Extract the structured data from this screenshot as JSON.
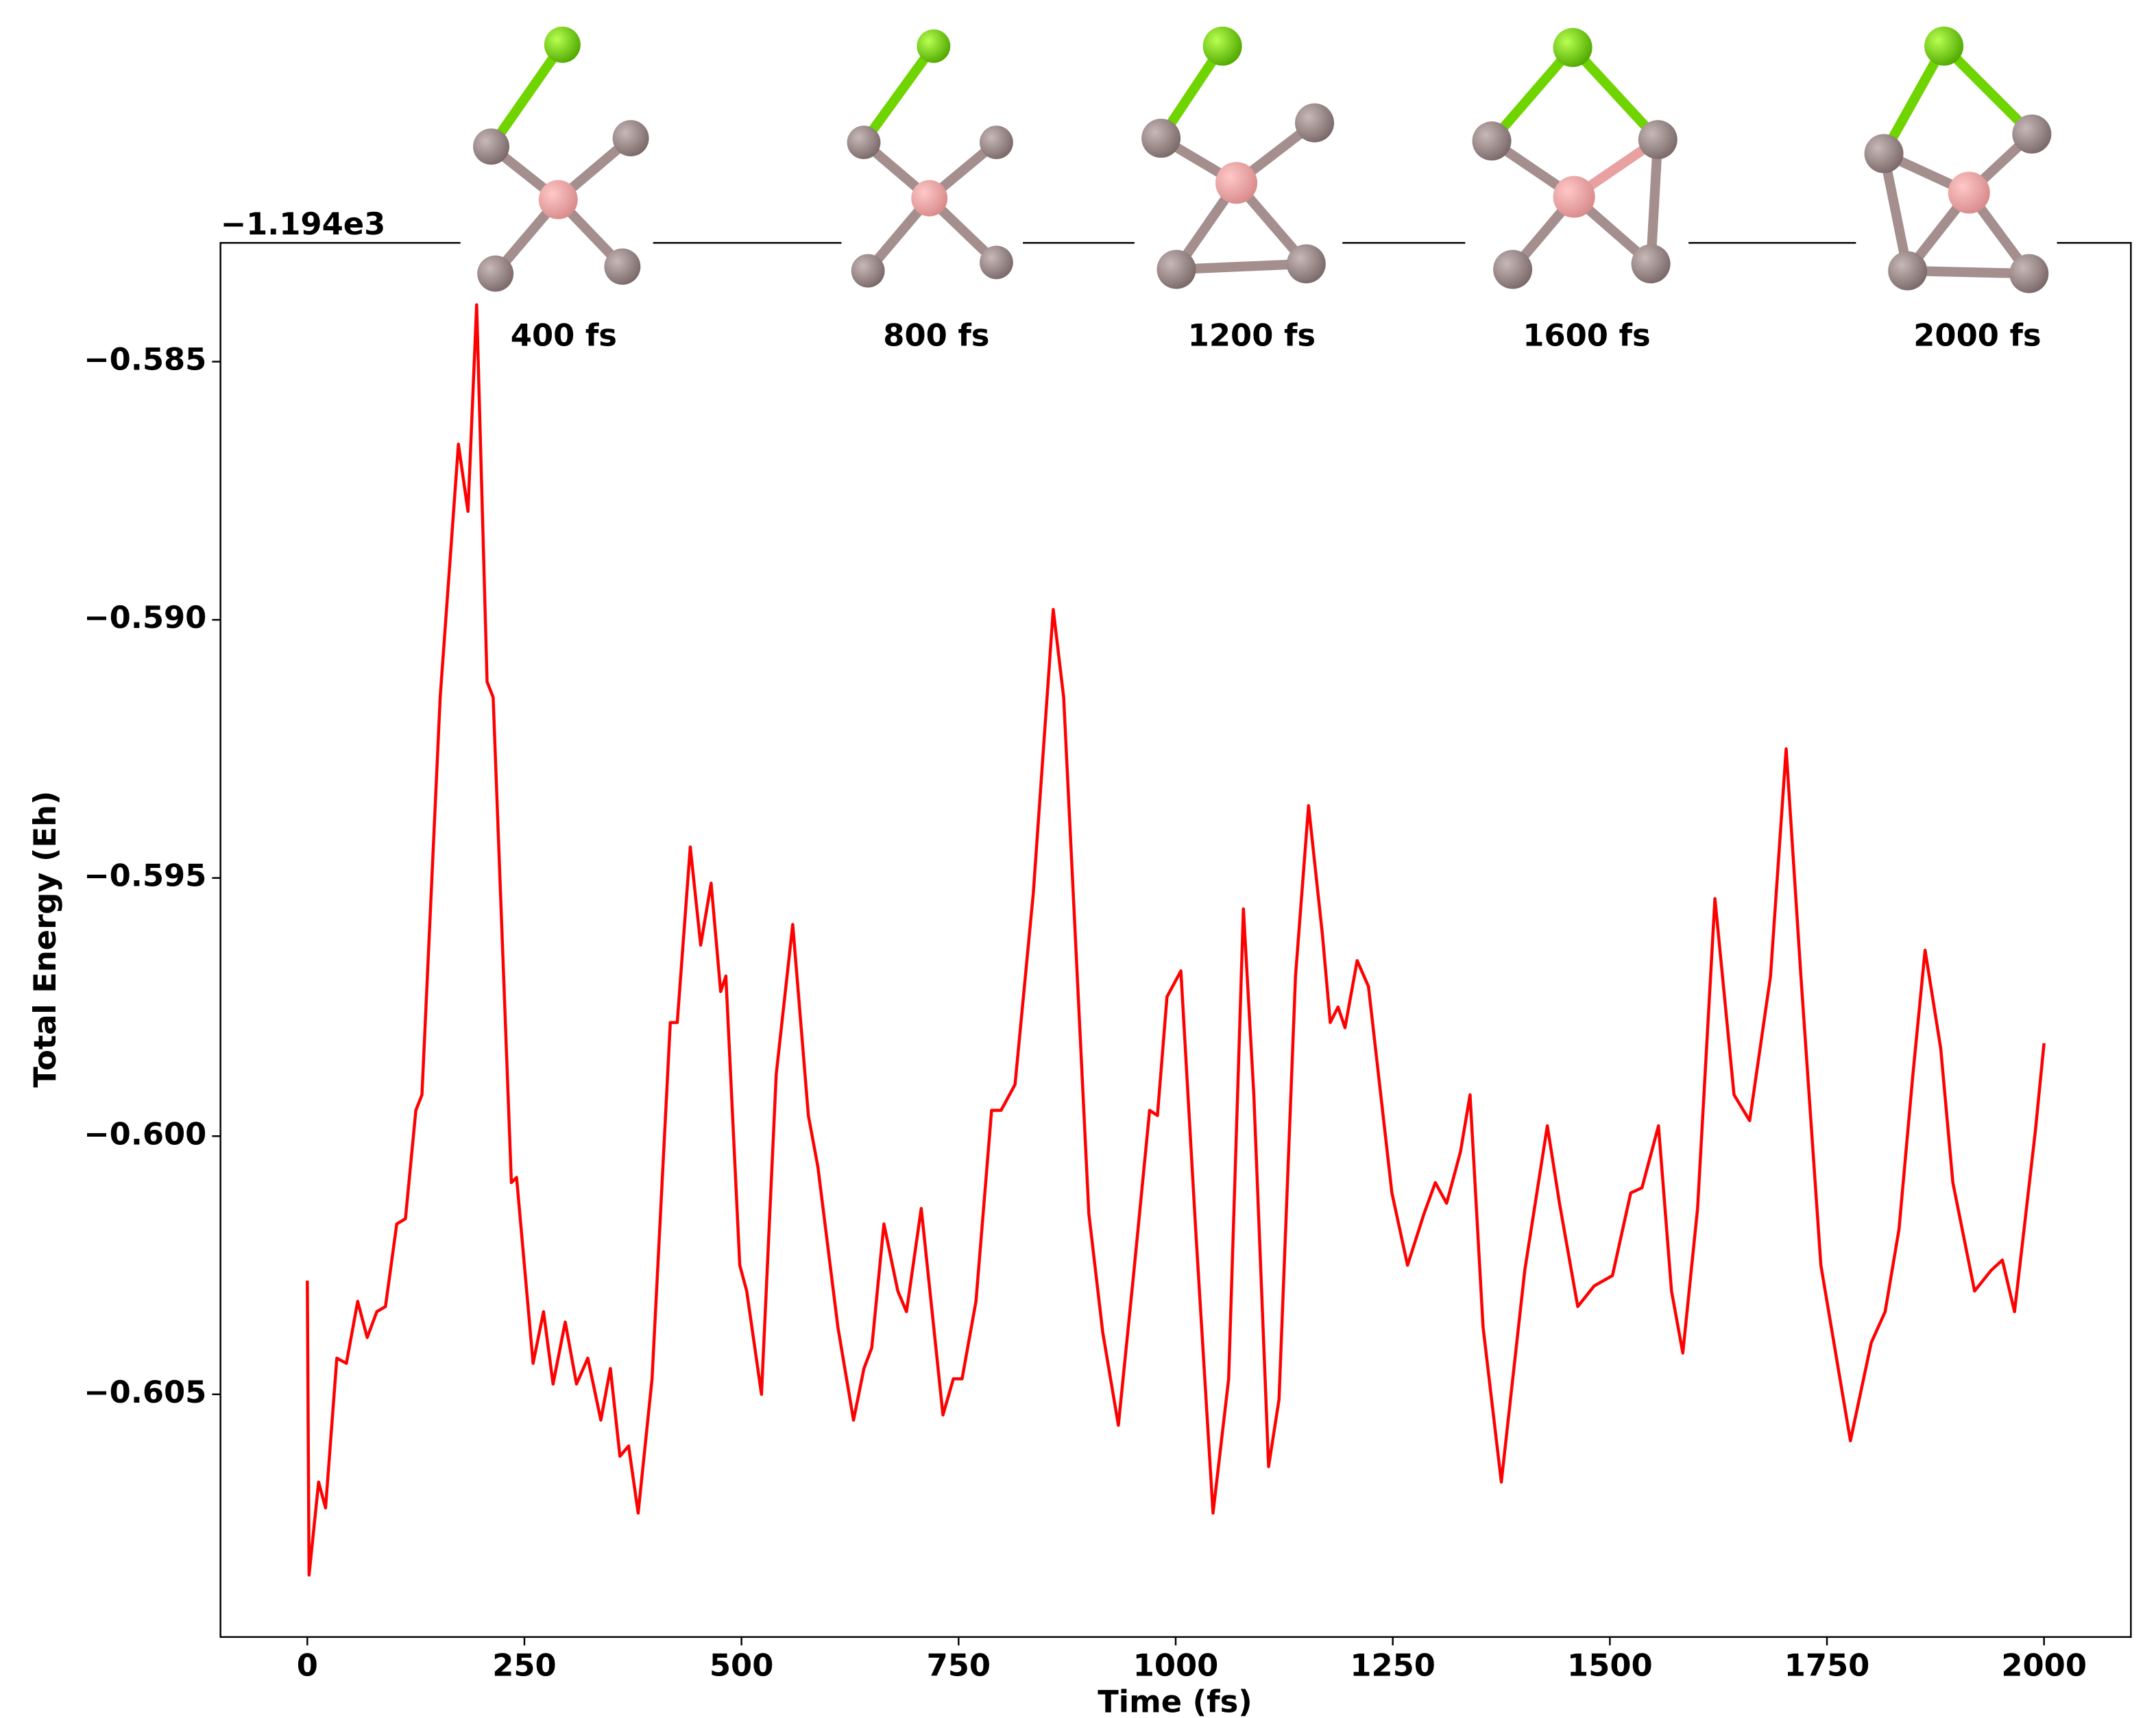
{
  "chart_data": {
    "type": "line",
    "xlabel": "Time (fs)",
    "ylabel": "Total Energy (Eh)",
    "y_offset_label": "−1.194e3",
    "annotations": [
      "400 fs",
      "800 fs",
      "1200 fs",
      "1600 fs",
      "2000 fs"
    ],
    "xlim": [
      -100,
      2100
    ],
    "xticks": [
      0,
      250,
      500,
      750,
      1000,
      1250,
      1500,
      1750,
      2000
    ],
    "ylim": [
      -0.6097,
      -0.5827
    ],
    "yticks": [
      {
        "value": -0.605,
        "label": "−0.605"
      },
      {
        "value": -0.6,
        "label": "−0.600"
      },
      {
        "value": -0.595,
        "label": "−0.595"
      },
      {
        "value": -0.59,
        "label": "−0.590"
      },
      {
        "value": -0.585,
        "label": "−0.585"
      }
    ],
    "grid": false,
    "x": [
      0,
      2,
      13,
      21,
      34,
      45,
      58,
      69,
      80,
      90,
      103,
      113,
      125,
      132,
      153,
      174,
      185,
      195,
      207,
      214,
      235,
      241,
      260,
      272,
      283,
      297,
      310,
      323,
      338,
      349,
      360,
      370,
      381,
      397,
      418,
      426,
      441,
      453,
      465,
      476,
      482,
      498,
      506,
      523,
      540,
      559,
      577,
      588,
      611,
      629,
      641,
      650,
      664,
      680,
      690,
      707,
      722,
      732,
      744,
      754,
      770,
      788,
      799,
      815,
      836,
      859,
      871,
      900,
      916,
      934,
      952,
      970,
      979,
      990,
      1006,
      1023,
      1043,
      1061,
      1078,
      1090,
      1107,
      1119,
      1138,
      1153,
      1169,
      1178,
      1187,
      1195,
      1209,
      1222,
      1249,
      1267,
      1286,
      1299,
      1312,
      1328,
      1339,
      1354,
      1375,
      1402,
      1428,
      1442,
      1463,
      1482,
      1503,
      1524,
      1537,
      1556,
      1571,
      1584,
      1601,
      1621,
      1643,
      1661,
      1685,
      1703,
      1720,
      1743,
      1777,
      1801,
      1817,
      1833,
      1849,
      1863,
      1881,
      1895,
      1920,
      1939,
      1952,
      1966,
      1977,
      1990,
      2000
    ],
    "series": [
      {
        "color": "#ff0000",
        "values": [
          -0.6028,
          -0.6085,
          -0.6067,
          -0.6072,
          -0.6043,
          -0.6044,
          -0.6032,
          -0.6039,
          -0.6034,
          -0.6033,
          -0.6017,
          -0.6016,
          -0.5995,
          -0.5992,
          -0.5915,
          -0.5866,
          -0.5879,
          -0.5839,
          -0.5912,
          -0.5915,
          -0.6009,
          -0.6008,
          -0.6044,
          -0.6034,
          -0.6048,
          -0.6036,
          -0.6048,
          -0.6043,
          -0.6055,
          -0.6045,
          -0.6062,
          -0.606,
          -0.6073,
          -0.6047,
          -0.5978,
          -0.5978,
          -0.5944,
          -0.5963,
          -0.5951,
          -0.5972,
          -0.5969,
          -0.6025,
          -0.603,
          -0.605,
          -0.5988,
          -0.5959,
          -0.5996,
          -0.6006,
          -0.6037,
          -0.6055,
          -0.6045,
          -0.6041,
          -0.6017,
          -0.603,
          -0.6034,
          -0.6014,
          -0.6038,
          -0.6054,
          -0.6047,
          -0.6047,
          -0.6032,
          -0.5995,
          -0.5995,
          -0.599,
          -0.5953,
          -0.5898,
          -0.5915,
          -0.6015,
          -0.6038,
          -0.6056,
          -0.6026,
          -0.5995,
          -0.5996,
          -0.5973,
          -0.5968,
          -0.6018,
          -0.6073,
          -0.6047,
          -0.5956,
          -0.5992,
          -0.6064,
          -0.6051,
          -0.5969,
          -0.5936,
          -0.5961,
          -0.5978,
          -0.5975,
          -0.5979,
          -0.5966,
          -0.5971,
          -0.6011,
          -0.6025,
          -0.6015,
          -0.6009,
          -0.6013,
          -0.6003,
          -0.5992,
          -0.6037,
          -0.6067,
          -0.6026,
          -0.5998,
          -0.6013,
          -0.6033,
          -0.6029,
          -0.6027,
          -0.6011,
          -0.601,
          -0.5998,
          -0.603,
          -0.6042,
          -0.6014,
          -0.5954,
          -0.5992,
          -0.5997,
          -0.5969,
          -0.5925,
          -0.5969,
          -0.6025,
          -0.6059,
          -0.604,
          -0.6034,
          -0.6018,
          -0.5988,
          -0.5964,
          -0.5983,
          -0.6009,
          -0.603,
          -0.6026,
          -0.6024,
          -0.6034,
          -0.6018,
          -0.5999,
          -0.5982
        ]
      }
    ]
  }
}
